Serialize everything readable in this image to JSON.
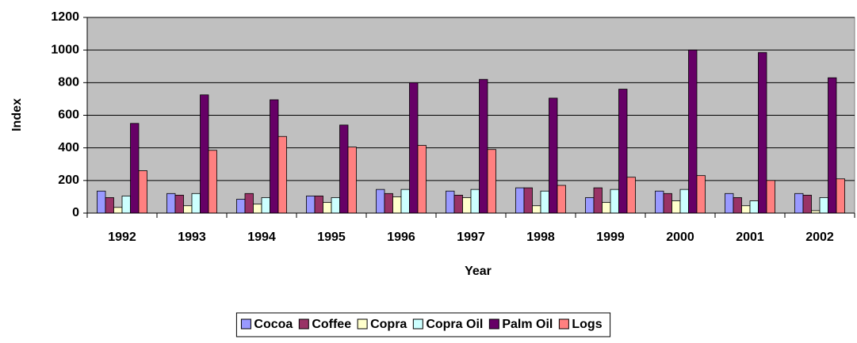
{
  "chart_data": {
    "type": "bar",
    "x_label": "Year",
    "y_label": "Index",
    "categories": [
      "1992",
      "1993",
      "1994",
      "1995",
      "1996",
      "1997",
      "1998",
      "1999",
      "2000",
      "2001",
      "2002"
    ],
    "series": [
      {
        "name": "Cocoa",
        "color": "#9999ff",
        "values": [
          135,
          120,
          85,
          105,
          145,
          135,
          155,
          95,
          135,
          120,
          120
        ]
      },
      {
        "name": "Coffee",
        "color": "#993366",
        "values": [
          95,
          110,
          120,
          105,
          120,
          110,
          155,
          155,
          120,
          95,
          110
        ]
      },
      {
        "name": "Copra",
        "color": "#ffffcc",
        "values": [
          35,
          45,
          55,
          65,
          100,
          95,
          45,
          65,
          75,
          45,
          15
        ]
      },
      {
        "name": "Copra Oil",
        "color": "#ccffff",
        "values": [
          105,
          120,
          95,
          95,
          145,
          145,
          135,
          145,
          145,
          75,
          95
        ]
      },
      {
        "name": "Palm Oil",
        "color": "#660066",
        "values": [
          550,
          725,
          695,
          540,
          800,
          820,
          705,
          760,
          1000,
          985,
          830
        ]
      },
      {
        "name": "Logs",
        "color": "#ff8080",
        "values": [
          260,
          385,
          470,
          405,
          415,
          390,
          170,
          220,
          230,
          200,
          210
        ]
      }
    ],
    "ylim": [
      0,
      1200
    ],
    "yticks": [
      0,
      200,
      400,
      600,
      800,
      1000,
      1200
    ],
    "grid": true,
    "legend": "bottom"
  }
}
